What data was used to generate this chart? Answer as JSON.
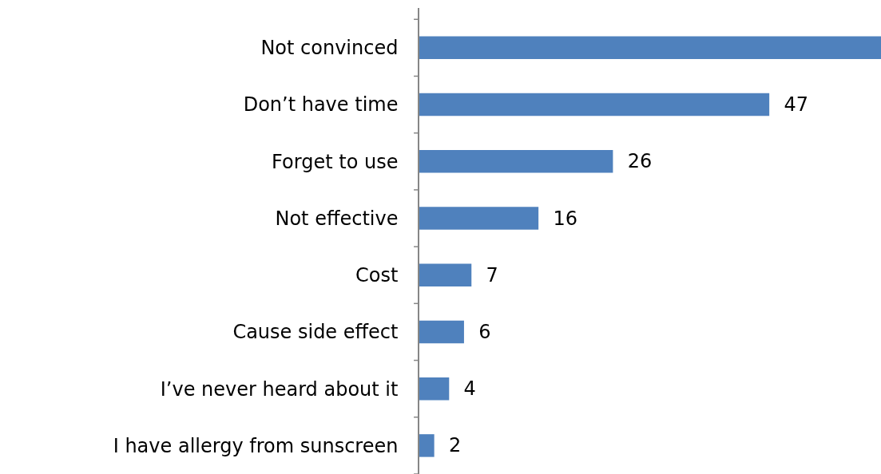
{
  "chart_data": {
    "type": "bar",
    "orientation": "horizontal",
    "categories": [
      "Not convinced",
      "Don’t have time",
      "Forget to use",
      "Not effective",
      "Cost",
      "Cause side effect",
      "I’ve never heard about it",
      "I have allergy from sunscreen"
    ],
    "values": [
      62,
      47,
      26,
      16,
      7,
      6,
      4,
      2
    ],
    "value_labels": [
      null,
      "47",
      "26",
      "16",
      "7",
      "6",
      "4",
      "2"
    ],
    "color": "#4f81bd",
    "xlim": [
      0,
      62
    ]
  }
}
